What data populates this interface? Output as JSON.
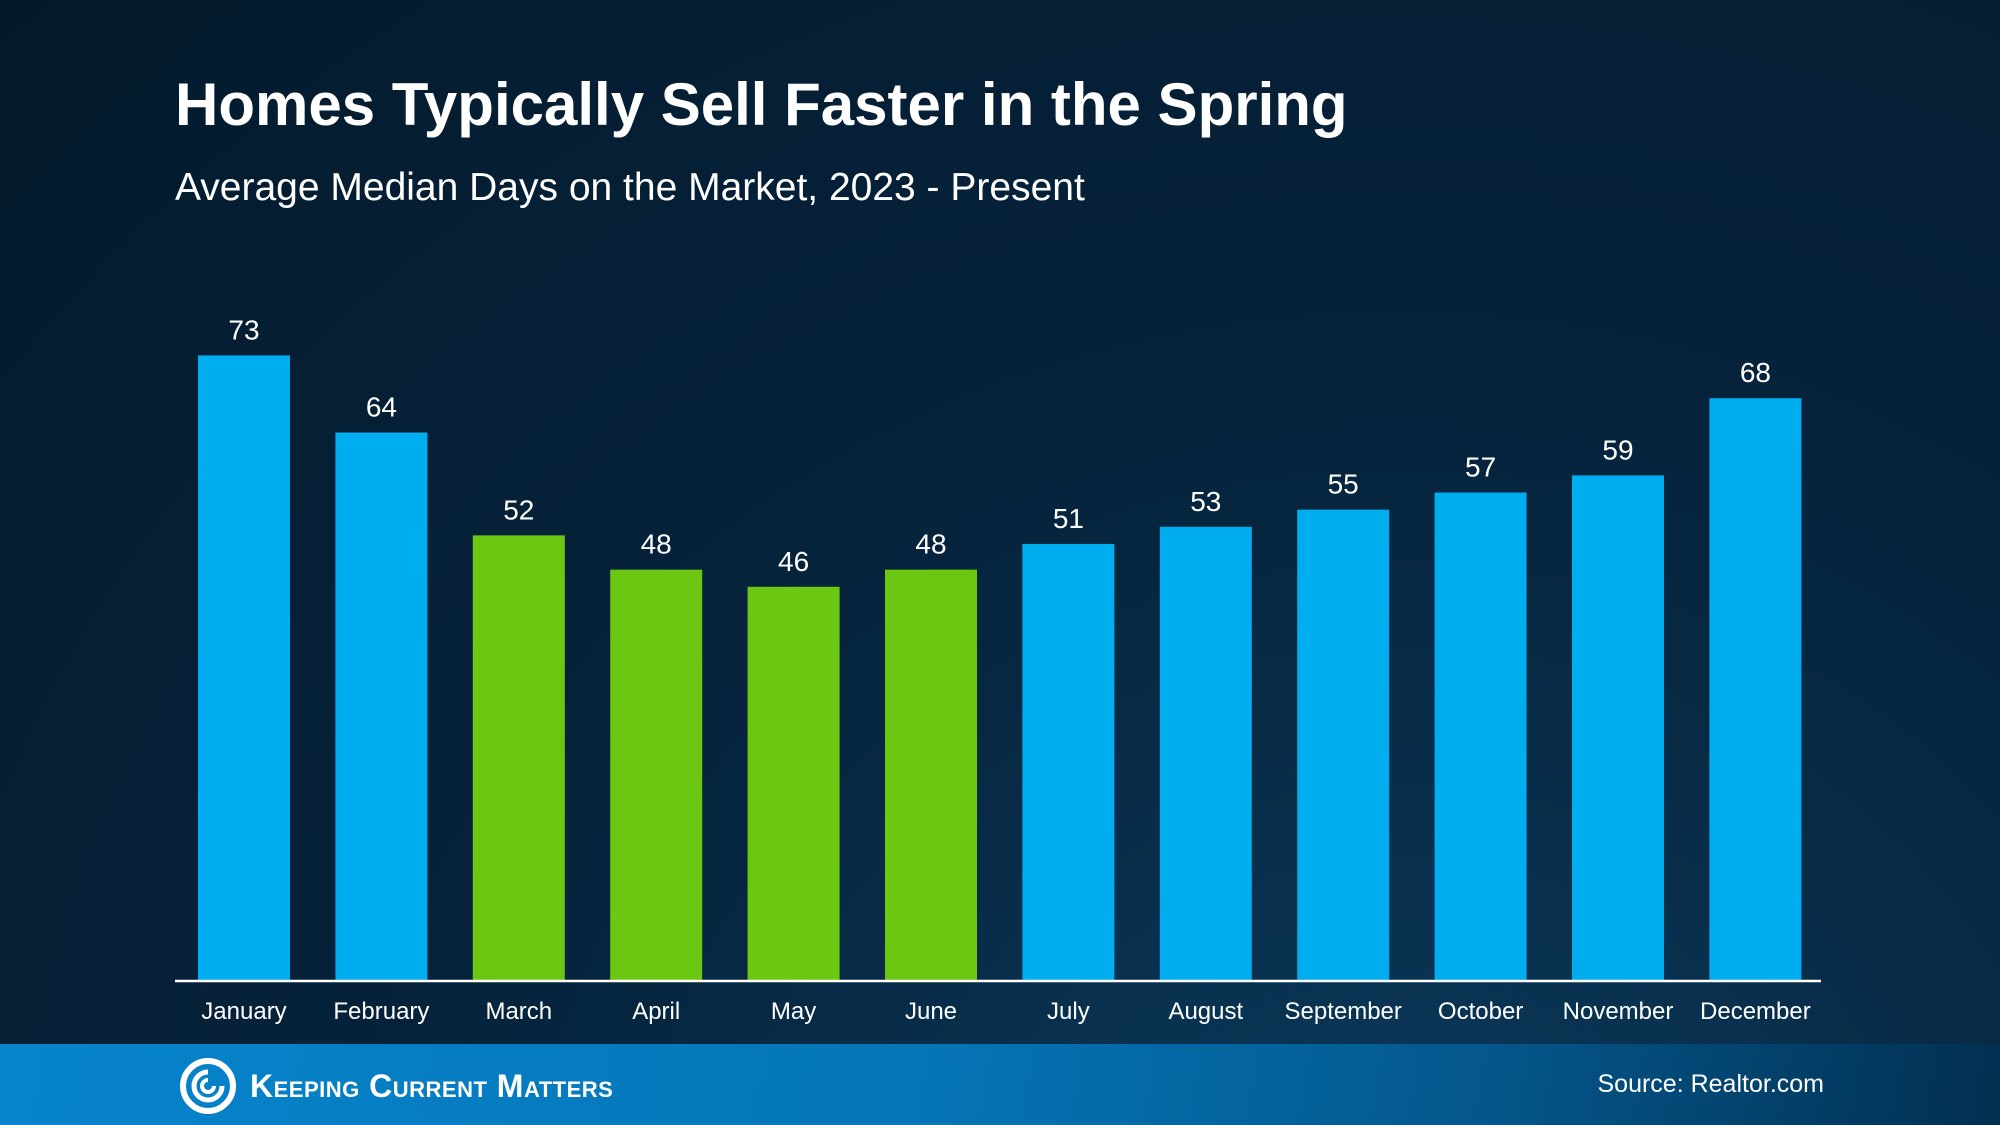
{
  "chart_data": {
    "type": "bar",
    "title": "Homes Typically Sell Faster in the Spring",
    "subtitle": "Average Median Days on the Market, 2023 - Present",
    "categories": [
      "January",
      "February",
      "March",
      "April",
      "May",
      "June",
      "July",
      "August",
      "September",
      "October",
      "November",
      "December"
    ],
    "values": [
      73,
      64,
      52,
      48,
      46,
      48,
      51,
      53,
      55,
      57,
      59,
      68
    ],
    "highlighted": [
      "March",
      "April",
      "May",
      "June"
    ],
    "colors": {
      "default": "#00aeef",
      "highlight": "#6cc712"
    },
    "ylim": [
      0,
      73
    ],
    "grid": false,
    "legend": "none",
    "data_labels": true
  },
  "footer": {
    "brand": "Keeping Current Matters",
    "source": "Source: Realtor.com",
    "logo_icon": "swirl-logo-icon"
  }
}
